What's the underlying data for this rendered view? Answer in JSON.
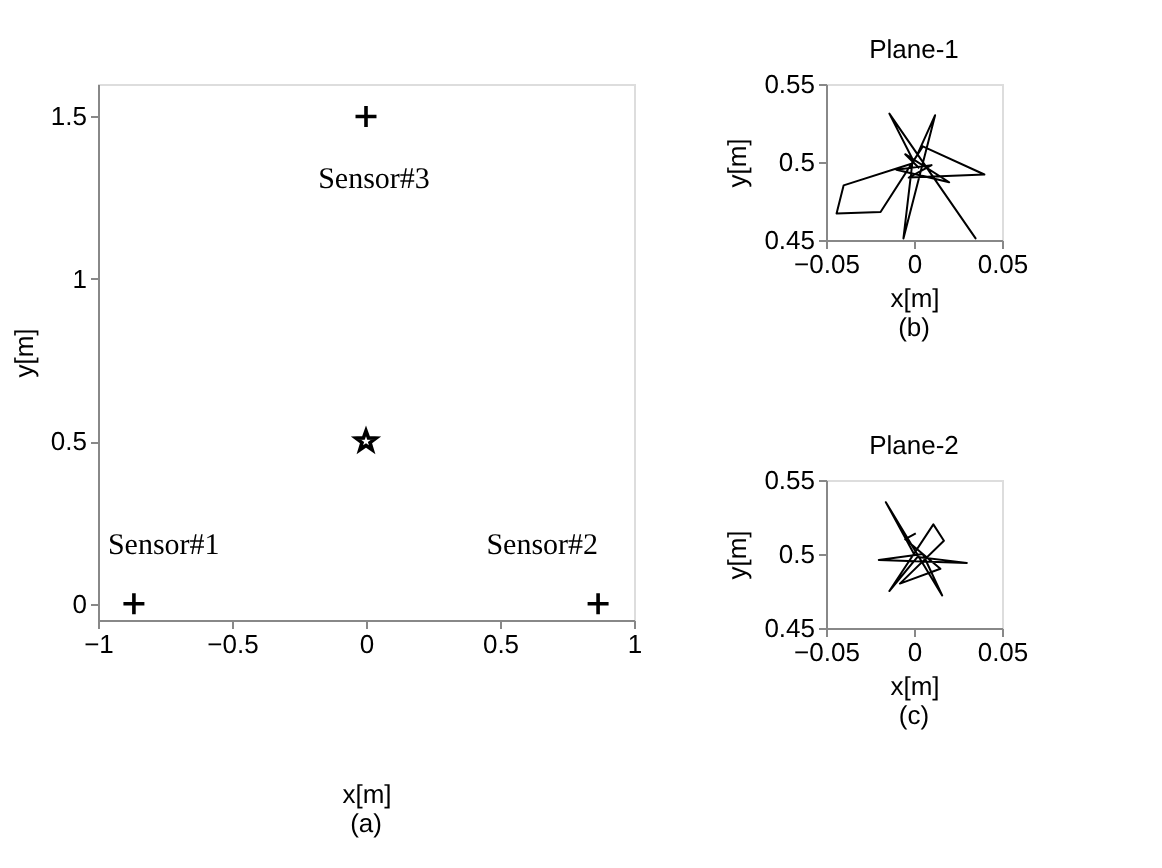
{
  "chart_data": [
    {
      "type": "scatter",
      "xlabel": "x[m]",
      "ylabel": "y[m]",
      "xlim": [
        -1,
        1
      ],
      "ylim": [
        -0.05,
        1.6
      ],
      "xticks": [
        -1,
        -0.5,
        0,
        0.5,
        1
      ],
      "yticks": [
        0,
        0.5,
        1,
        1.5
      ],
      "grid": false,
      "series": [
        {
          "type": "scatter",
          "marker": "cross",
          "color": "#000000",
          "x": [
            -0.866,
            0.866,
            0
          ],
          "values": [
            0,
            0,
            1.5
          ]
        },
        {
          "type": "scatter",
          "marker": "star",
          "color": "#000000",
          "x": [
            0
          ],
          "values": [
            0.5
          ]
        }
      ],
      "annotations": [
        {
          "text": "Sensor#1",
          "x": -0.866,
          "y": 0
        },
        {
          "text": "Sensor#2",
          "x": 0.866,
          "y": 0
        },
        {
          "text": "Sensor#3",
          "x": 0,
          "y": 1.5
        },
        "(a)"
      ]
    },
    {
      "type": "line",
      "title": "Plane-1",
      "xlabel": "x[m]",
      "ylabel": "y[m]",
      "xlim": [
        -0.05,
        0.05
      ],
      "ylim": [
        0.45,
        0.55
      ],
      "xticks": [
        -0.05,
        0,
        0.05
      ],
      "yticks": [
        0.45,
        0.5,
        0.55
      ],
      "grid": false,
      "series": [
        {
          "color": "#000000",
          "x": [
            0,
            -0.014,
            0.035,
            0.002,
            0.012,
            -0.006,
            -0.001,
            -0.04,
            -0.044,
            -0.019,
            0.005,
            0.04,
            -0.003,
            0.01,
            -0.01,
            0.02,
            -0.005,
            0.003
          ],
          "values": [
            0.5,
            0.531,
            0.451,
            0.505,
            0.53,
            0.451,
            0.499,
            0.485,
            0.467,
            0.468,
            0.51,
            0.492,
            0.49,
            0.498,
            0.495,
            0.487,
            0.505,
            0.496
          ]
        }
      ],
      "annotations": [
        "(b)"
      ]
    },
    {
      "type": "line",
      "title": "Plane-2",
      "xlabel": "x[m]",
      "ylabel": "y[m]",
      "xlim": [
        -0.05,
        0.05
      ],
      "ylim": [
        0.45,
        0.55
      ],
      "xticks": [
        -0.05,
        0,
        0.05
      ],
      "yticks": [
        0.45,
        0.5,
        0.55
      ],
      "grid": false,
      "series": [
        {
          "color": "#000000",
          "x": [
            0,
            -0.016,
            0.016,
            0.005,
            -0.02,
            0.03,
            0.002,
            -0.014,
            0.011,
            0.017,
            -0.008,
            0.015,
            -0.005,
            0.001
          ],
          "values": [
            0.5,
            0.535,
            0.472,
            0.5,
            0.496,
            0.494,
            0.498,
            0.475,
            0.52,
            0.509,
            0.48,
            0.49,
            0.51,
            0.514
          ]
        }
      ],
      "annotations": [
        "(c)"
      ]
    }
  ]
}
